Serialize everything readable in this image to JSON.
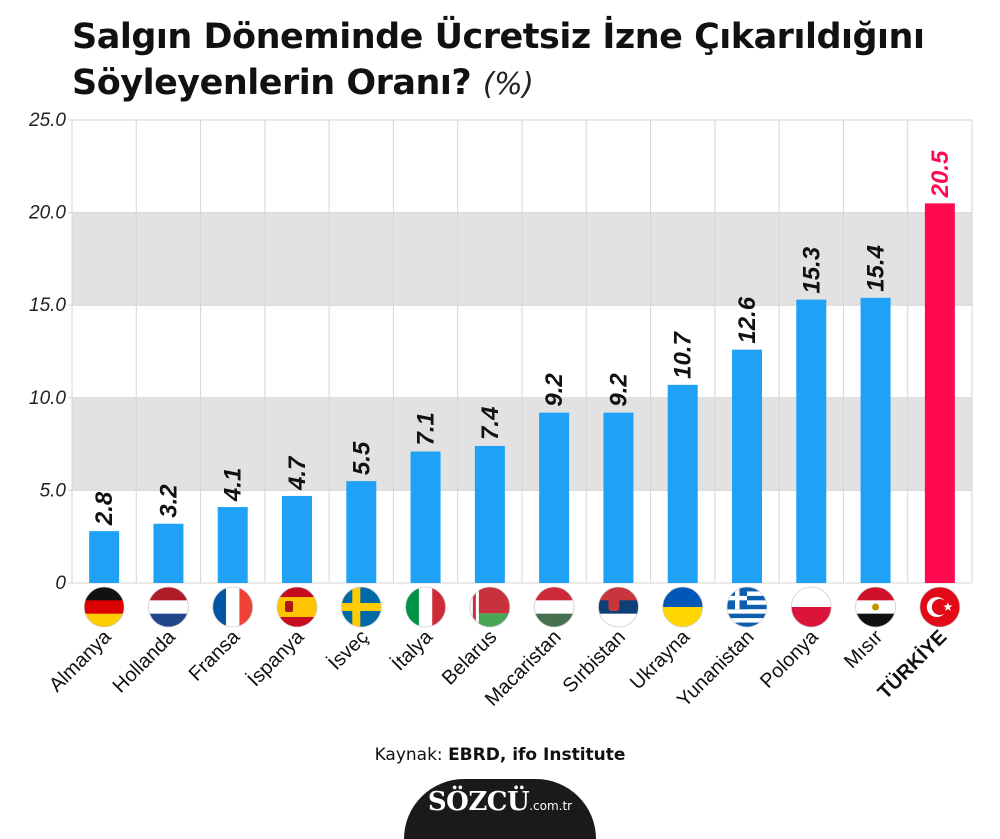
{
  "title_line1": "Salgın Döneminde Ücretsiz İzne Çıkarıldığını",
  "title_line2": "Söyleyenlerin Oranı?",
  "title_unit": "(%)",
  "source_prefix": "Kaynak: ",
  "source_bold": "EBRD, ifo Institute",
  "logo_brand": "SÖZCÜ",
  "logo_domain": ".com.tr",
  "colors": {
    "bar": "#1fa2f5",
    "highlight": "#ff0a4e",
    "band": "#e2e2e2",
    "grid": "#d6d6d6",
    "text": "#111111"
  },
  "chart_data": {
    "type": "bar",
    "categories": [
      "Almanya",
      "Hollanda",
      "Fransa",
      "İspanya",
      "İsveç",
      "İtalya",
      "Belarus",
      "Macaristan",
      "Sırbistan",
      "Ukrayna",
      "Yunanistan",
      "Polonya",
      "Mısır",
      "TÜRKİYE"
    ],
    "values": [
      2.8,
      3.2,
      4.1,
      4.7,
      5.5,
      7.1,
      7.4,
      9.2,
      9.2,
      10.7,
      12.6,
      15.3,
      15.4,
      20.5
    ],
    "value_labels": [
      "2.8",
      "3.2",
      "4.1",
      "4.7",
      "5.5",
      "7.1",
      "7.4",
      "9.2",
      "9.2",
      "10.7",
      "12.6",
      "15.3",
      "15.4",
      "20.5"
    ],
    "highlight_index": 13,
    "flags": [
      "germany-flag",
      "netherlands-flag",
      "france-flag",
      "spain-flag",
      "sweden-flag",
      "italy-flag",
      "belarus-flag",
      "hungary-flag",
      "serbia-flag",
      "ukraine-flag",
      "greece-flag",
      "poland-flag",
      "egypt-flag",
      "turkey-flag"
    ],
    "ylim": [
      0,
      25
    ],
    "yticks": [
      0,
      5,
      10,
      15,
      20,
      25
    ],
    "ytick_labels": [
      "0",
      "5.0",
      "10.0",
      "15.0",
      "20.0",
      "25.0"
    ],
    "grid": true,
    "shaded_bands": [
      [
        5,
        10
      ],
      [
        15,
        20
      ]
    ]
  }
}
